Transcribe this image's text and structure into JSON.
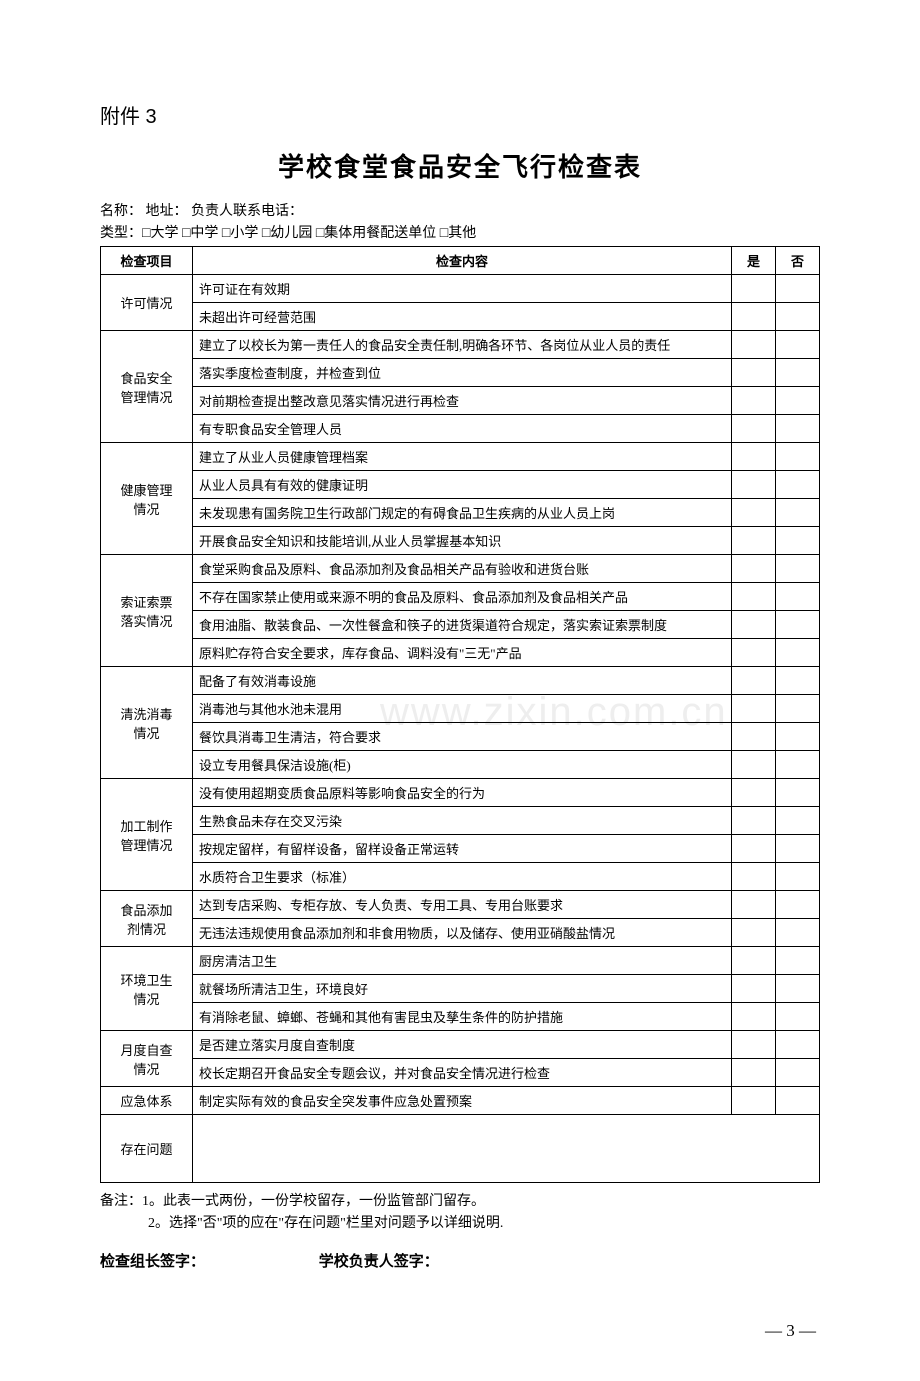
{
  "attachment": "附件 3",
  "title": "学校食堂食品安全飞行检查表",
  "info_line1": "名称：  地址：   负责人联系电话：",
  "info_line2": "类型：□大学  □中学  □小学  □幼儿园  □集体用餐配送单位  □其他",
  "header": {
    "category": "检查项目",
    "content": "检查内容",
    "yes": "是",
    "no": "否"
  },
  "sections": [
    {
      "category": "许可情况",
      "items": [
        "许可证在有效期",
        "未超出许可经营范围"
      ]
    },
    {
      "category": "食品安全管理情况",
      "items": [
        "建立了以校长为第一责任人的食品安全责任制,明确各环节、各岗位从业人员的责任",
        "落实季度检查制度，并检查到位",
        "对前期检查提出整改意见落实情况进行再检查",
        "有专职食品安全管理人员"
      ]
    },
    {
      "category": "健康管理情况",
      "items": [
        "建立了从业人员健康管理档案",
        "从业人员具有有效的健康证明",
        "未发现患有国务院卫生行政部门规定的有碍食品卫生疾病的从业人员上岗",
        "开展食品安全知识和技能培训,从业人员掌握基本知识"
      ]
    },
    {
      "category": "索证索票落实情况",
      "items": [
        "食堂采购食品及原料、食品添加剂及食品相关产品有验收和进货台账",
        "不存在国家禁止使用或来源不明的食品及原料、食品添加剂及食品相关产品",
        "食用油脂、散装食品、一次性餐盒和筷子的进货渠道符合规定，落实索证索票制度",
        "原料贮存符合安全要求，库存食品、调料没有\"三无\"产品"
      ]
    },
    {
      "category": "清洗消毒情况",
      "items": [
        "配备了有效消毒设施",
        "消毒池与其他水池未混用",
        "餐饮具消毒卫生清洁，符合要求",
        "设立专用餐具保洁设施(柜)"
      ]
    },
    {
      "category": "加工制作管理情况",
      "items": [
        "没有使用超期变质食品原料等影响食品安全的行为",
        "生熟食品未存在交叉污染",
        "按规定留样，有留样设备，留样设备正常运转",
        "水质符合卫生要求（标准）"
      ]
    },
    {
      "category": "食品添加剂情况",
      "items": [
        "达到专店采购、专柜存放、专人负责、专用工具、专用台账要求",
        "无违法违规使用食品添加剂和非食用物质，以及储存、使用亚硝酸盐情况"
      ]
    },
    {
      "category": "环境卫生情况",
      "items": [
        "厨房清洁卫生",
        "就餐场所清洁卫生，环境良好",
        "有消除老鼠、蟑螂、苍蝇和其他有害昆虫及孳生条件的防护措施"
      ]
    },
    {
      "category": "月度自查情况",
      "items": [
        "是否建立落实月度自查制度",
        "校长定期召开食品安全专题会议，并对食品安全情况进行检查"
      ]
    },
    {
      "category": "应急体系",
      "items": [
        "制定实际有效的食品安全突发事件应急处置预案"
      ]
    }
  ],
  "issues_label": "存在问题",
  "footnote1": "备注：1。此表一式两份，一份学校留存，一份监管部门留存。",
  "footnote2": "2。选择\"否\"项的应在\"存在问题\"栏里对问题予以详细说明.",
  "signature1": "检查组长签字：",
  "signature2": "学校负责人签字：",
  "page_number": "— 3 —",
  "watermark": "www.zixin.com.cn"
}
